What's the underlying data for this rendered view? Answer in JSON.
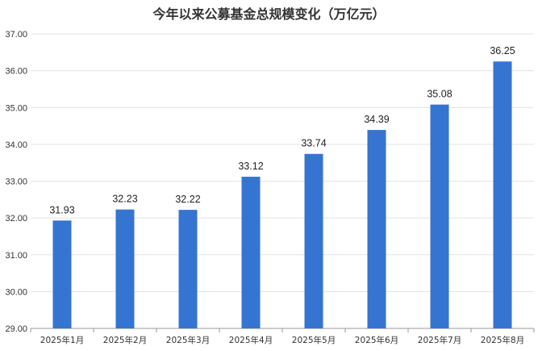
{
  "chart_data": {
    "type": "bar",
    "title": "今年以来公募基金总规模变化（万亿元）",
    "categories": [
      "2025年1月",
      "2025年2月",
      "2025年3月",
      "2025年4月",
      "2025年5月",
      "2025年6月",
      "2025年7月",
      "2025年8月"
    ],
    "values": [
      31.93,
      32.23,
      32.22,
      33.12,
      33.74,
      34.39,
      35.08,
      36.25
    ],
    "data_labels": [
      "31.93",
      "32.23",
      "32.22",
      "33.12",
      "33.74",
      "34.39",
      "35.08",
      "36.25"
    ],
    "y_ticks": [
      "29.00",
      "30.00",
      "31.00",
      "32.00",
      "33.00",
      "34.00",
      "35.00",
      "36.00",
      "37.00"
    ],
    "ylim": [
      29,
      37
    ],
    "xlabel": "",
    "ylabel": "",
    "grid": true,
    "bar_color": "#3574d1",
    "grid_color": "#e3e3e3"
  }
}
